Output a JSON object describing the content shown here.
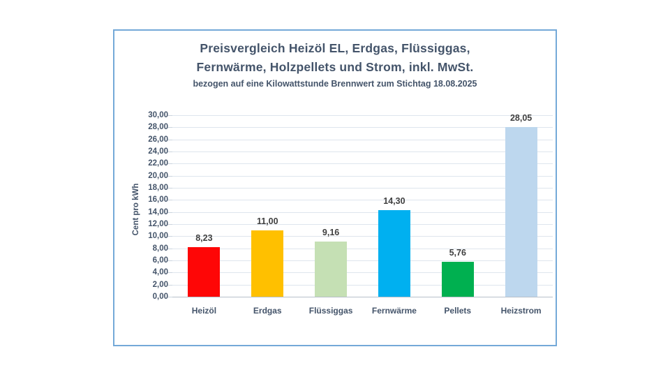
{
  "chart_data": {
    "type": "bar",
    "title_line1": "Preisvergleich Heizöl EL, Erdgas, Flüssiggas,",
    "title_line2": "Fernwärme, Holzpellets und Strom, inkl. MwSt.",
    "subtitle": "bezogen auf eine Kilowattstunde Brennwert zum Stichtag 18.08.2025",
    "ylabel": "Cent pro kWh",
    "xlabel": "",
    "categories": [
      "Heizöl",
      "Erdgas",
      "Flüssiggas",
      "Fernwärme",
      "Pellets",
      "Heizstrom"
    ],
    "values": [
      8.23,
      11.0,
      9.16,
      14.3,
      5.76,
      28.05
    ],
    "value_labels": [
      "8,23",
      "11,00",
      "9,16",
      "14,30",
      "5,76",
      "28,05"
    ],
    "bar_colors": [
      "#FE0606",
      "#FFC000",
      "#C5E0B4",
      "#00B0F0",
      "#00B050",
      "#BDD7EE"
    ],
    "ylim": [
      0,
      30
    ],
    "ytick_step": 2,
    "ytick_labels": [
      "0,00",
      "2,00",
      "4,00",
      "6,00",
      "8,00",
      "10,00",
      "12,00",
      "14,00",
      "16,00",
      "18,00",
      "20,00",
      "22,00",
      "24,00",
      "26,00",
      "28,00",
      "30,00"
    ],
    "grid": true,
    "legend": "none",
    "colors": {
      "title": "#44546A",
      "axis_labels": "#44546A",
      "value_labels": "#3F3F3F",
      "gridline": "#DEE5ED",
      "tickmark": "#CBD4DE",
      "axis_line": "#B7BFC9",
      "panel_border": "#74A9D8"
    }
  }
}
